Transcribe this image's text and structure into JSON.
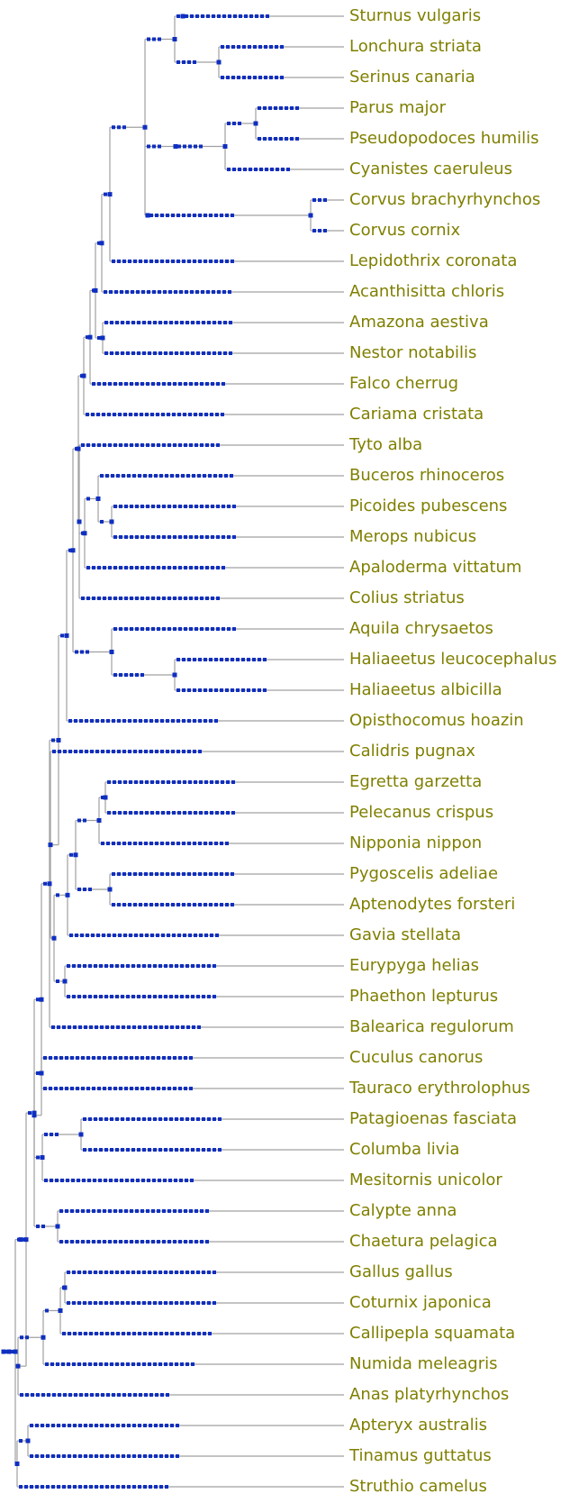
{
  "tree": {
    "label_color": "#7f7f00",
    "node_color": "#0f2fc0",
    "branch_color": "#a0a0a0",
    "leaves": [
      "Sturnus vulgaris",
      "Lonchura striata",
      "Serinus canaria",
      "Parus major",
      "Pseudopodoces humilis",
      "Cyanistes caeruleus",
      "Corvus brachyrhynchos",
      "Corvus cornix",
      "Lepidothrix coronata",
      "Acanthisitta chloris",
      "Amazona aestiva",
      "Nestor notabilis",
      "Falco cherrug",
      "Cariama cristata",
      "Tyto alba",
      "Buceros rhinoceros",
      "Picoides pubescens",
      "Merops nubicus",
      "Apaloderma vittatum",
      "Colius striatus",
      "Aquila chrysaetos",
      "Haliaeetus leucocephalus",
      "Haliaeetus albicilla",
      "Opisthocomus hoazin",
      "Calidris pugnax",
      "Egretta garzetta",
      "Pelecanus crispus",
      "Nipponia nippon",
      "Pygoscelis adeliae",
      "Aptenodytes forsteri",
      "Gavia stellata",
      "Eurypyga helias",
      "Phaethon lepturus",
      "Balearica regulorum",
      "Cuculus canorus",
      "Tauraco erythrolophus",
      "Patagioenas fasciata",
      "Columba livia",
      "Mesitornis unicolor",
      "Calypte anna",
      "Chaetura pelagica",
      "Gallus gallus",
      "Coturnix japonica",
      "Callipepla squamata",
      "Numida meleagris",
      "Anas platyrhynchos",
      "Apteryx australis",
      "Tinamus guttatus",
      "Struthio camelus"
    ]
  }
}
